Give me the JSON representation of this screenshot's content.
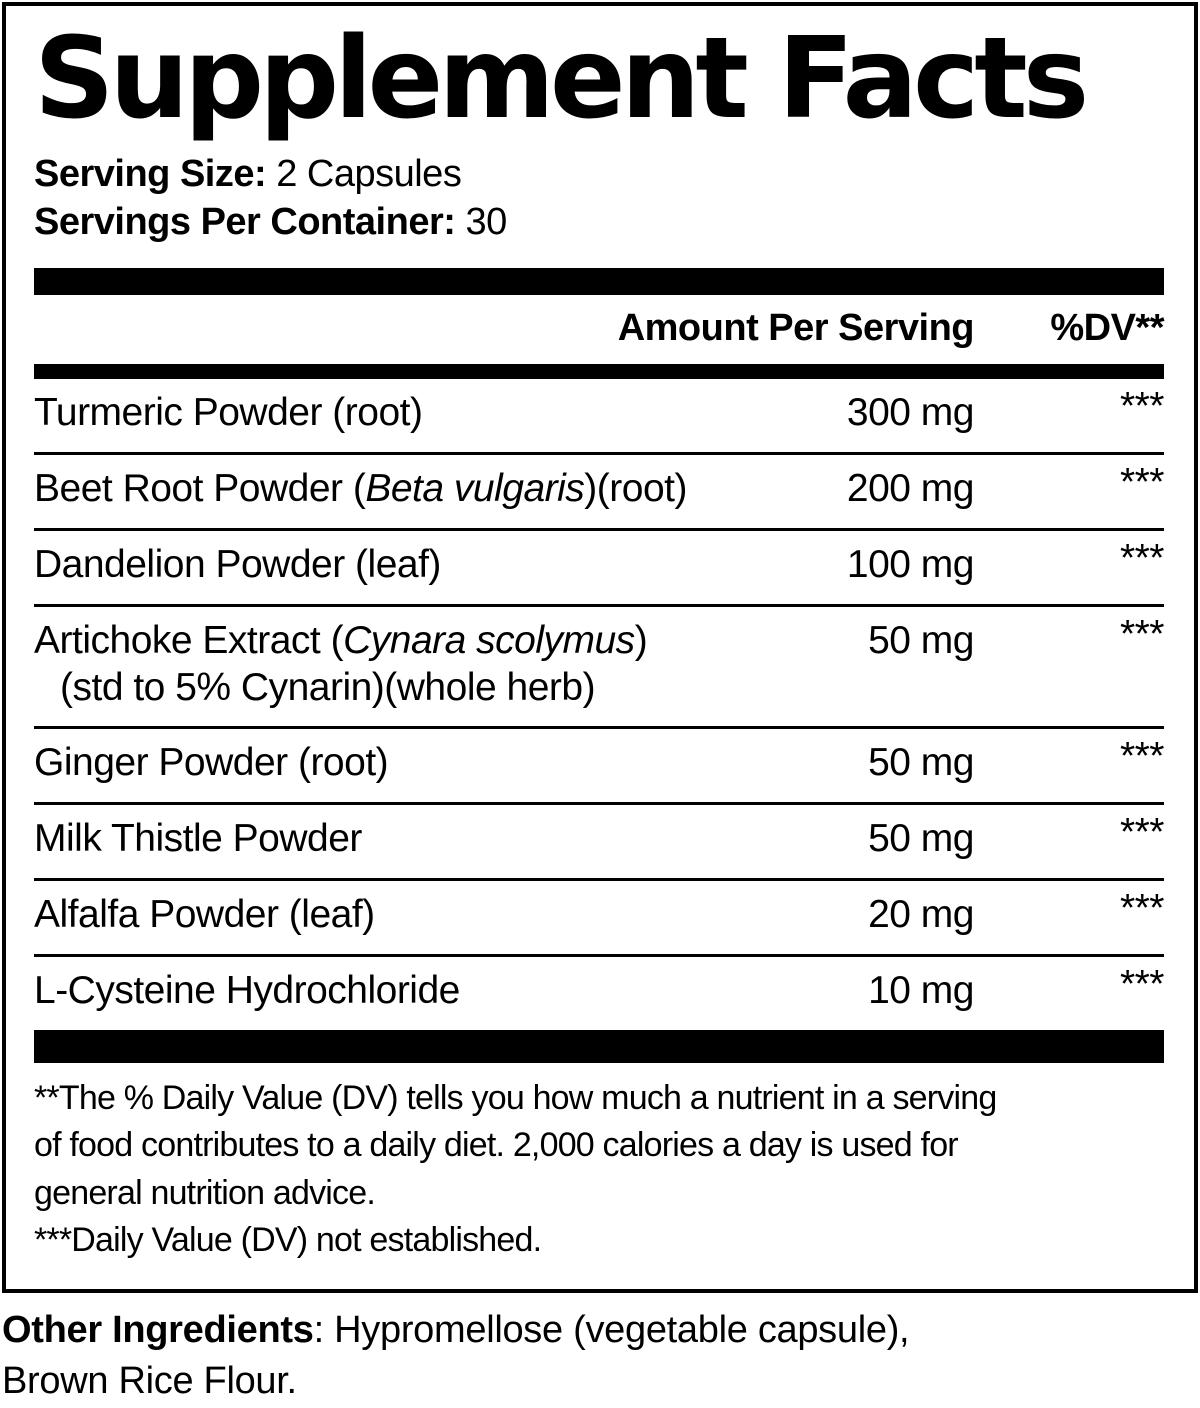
{
  "colors": {
    "ink": "#000000",
    "paper": "#ffffff"
  },
  "title": "Supplement Facts",
  "serving": {
    "size_label": "Serving Size:",
    "size_value": "2 Capsules",
    "container_label": "Servings Per Container:",
    "container_value": "30"
  },
  "table": {
    "amount_header": "Amount Per Serving",
    "dv_header": "%DV**",
    "rows": [
      {
        "name_parts": [
          {
            "text": "Turmeric Powder (root)",
            "italic": false
          }
        ],
        "amount": "300 mg",
        "dv": "***"
      },
      {
        "name_parts": [
          {
            "text": "Beet Root Powder (",
            "italic": false
          },
          {
            "text": "Beta vulgaris",
            "italic": true
          },
          {
            "text": ")(root)",
            "italic": false
          }
        ],
        "amount": "200 mg",
        "dv": "***"
      },
      {
        "name_parts": [
          {
            "text": "Dandelion Powder (leaf)",
            "italic": false
          }
        ],
        "amount": "100 mg",
        "dv": "***"
      },
      {
        "name_parts": [
          {
            "text": "Artichoke Extract (",
            "italic": false
          },
          {
            "text": "Cynara scolymus",
            "italic": true
          },
          {
            "text": ")",
            "italic": false
          }
        ],
        "sub_line": "(std to 5% Cynarin)(whole herb)",
        "amount": "50 mg",
        "dv": "***"
      },
      {
        "name_parts": [
          {
            "text": "Ginger Powder (root)",
            "italic": false
          }
        ],
        "amount": "50 mg",
        "dv": "***"
      },
      {
        "name_parts": [
          {
            "text": "Milk Thistle Powder",
            "italic": false
          }
        ],
        "amount": "50 mg",
        "dv": "***"
      },
      {
        "name_parts": [
          {
            "text": "Alfalfa Powder (leaf)",
            "italic": false
          }
        ],
        "amount": "20 mg",
        "dv": "***"
      },
      {
        "name_parts": [
          {
            "text": "L-Cysteine Hydrochloride",
            "italic": false
          }
        ],
        "amount": "10 mg",
        "dv": "***"
      }
    ]
  },
  "footnotes": {
    "lines": [
      "**The % Daily Value (DV) tells you how much a nutrient in a serving",
      "of food contributes to a daily diet. 2,000 calories a day is used for",
      "general nutrition advice.",
      "***Daily Value (DV) not established."
    ]
  },
  "other_ingredients": {
    "label": "Other Ingredients",
    "rest": ": Hypromellose (vegetable capsule),",
    "line2": "Brown Rice Flour."
  }
}
